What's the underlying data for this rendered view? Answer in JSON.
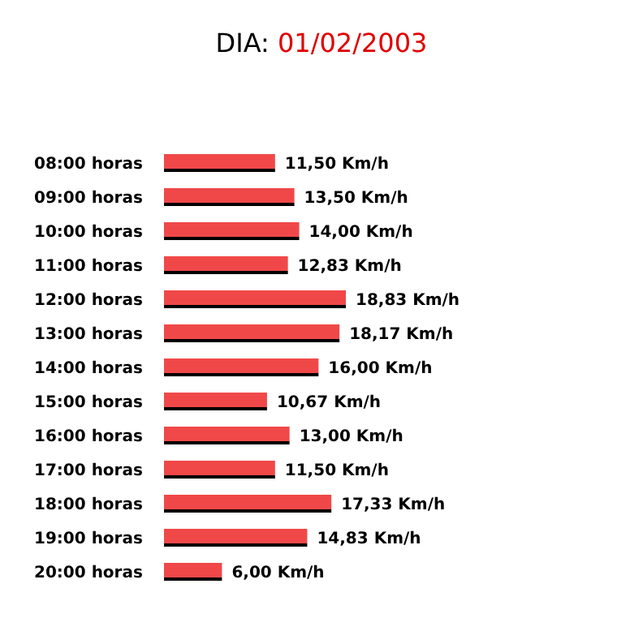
{
  "chart_data": {
    "type": "bar",
    "orientation": "horizontal",
    "title": "DIA: 01/02/2003",
    "categories": [
      "08:00 horas",
      "09:00 horas",
      "10:00 horas",
      "11:00 horas",
      "12:00 horas",
      "13:00 horas",
      "14:00 horas",
      "15:00 horas",
      "16:00 horas",
      "17:00 horas",
      "18:00 horas",
      "19:00 horas",
      "20:00 horas"
    ],
    "values": [
      11.5,
      13.5,
      14.0,
      12.83,
      18.83,
      18.17,
      16.0,
      10.67,
      13.0,
      11.5,
      17.33,
      14.83,
      6.0
    ],
    "value_labels": [
      "11,50 Km/h",
      "13,50 Km/h",
      "14,00 Km/h",
      "12,83 Km/h",
      "18,83 Km/h",
      "18,17 Km/h",
      "16,00 Km/h",
      "10,67 Km/h",
      "13,00 Km/h",
      "11,50 Km/h",
      "17,33 Km/h",
      "14,83 Km/h",
      "6,00 Km/h"
    ],
    "color": "#f04848"
  }
}
